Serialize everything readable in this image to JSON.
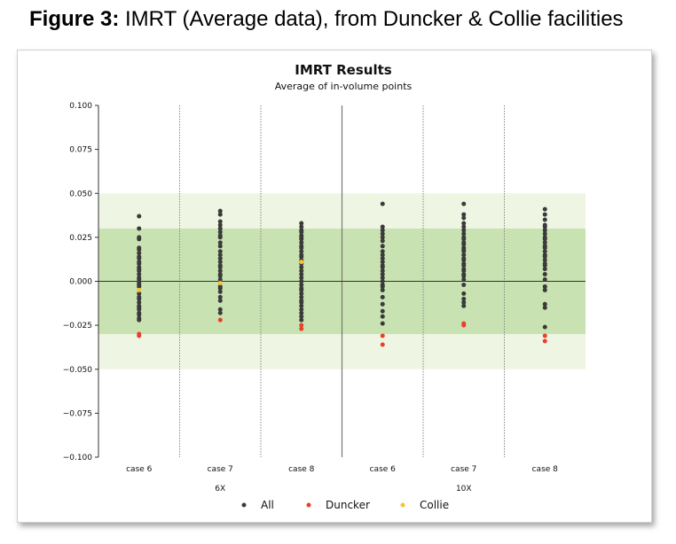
{
  "caption": {
    "label": "Figure 3:",
    "text": " IMRT (Average data), from Duncker & Collie facilities"
  },
  "chart_data": {
    "type": "scatter",
    "title": "IMRT Results",
    "subtitle": "Average of in-volume points",
    "ylim": [
      -0.1,
      0.1
    ],
    "yticks": [
      "0.100",
      "0.075",
      "0.050",
      "0.025",
      "0.000",
      "−0.025",
      "−0.050",
      "−0.075",
      "−0.100"
    ],
    "ytick_values": [
      0.1,
      0.075,
      0.05,
      0.025,
      0,
      -0.025,
      -0.05,
      -0.075,
      -0.1
    ],
    "bands": [
      {
        "from": -0.05,
        "to": 0.05,
        "color": "#eef6e3"
      },
      {
        "from": -0.03,
        "to": 0.03,
        "color": "#c9e2b2"
      }
    ],
    "categories": [
      "case 6",
      "case 7",
      "case 8",
      "case 6",
      "case 7",
      "case 8"
    ],
    "groups": [
      {
        "label": "6X",
        "categories": [
          0,
          1,
          2
        ]
      },
      {
        "label": "10X",
        "categories": [
          3,
          4,
          5
        ]
      }
    ],
    "series": [
      {
        "name": "All",
        "color": "#3a3a3a",
        "points": [
          [
            0,
            0.037
          ],
          [
            0,
            0.03
          ],
          [
            0,
            0.025
          ],
          [
            0,
            0.024
          ],
          [
            0,
            0.019
          ],
          [
            0,
            0.018
          ],
          [
            0,
            0.016
          ],
          [
            0,
            0.014
          ],
          [
            0,
            0.013
          ],
          [
            0,
            0.011
          ],
          [
            0,
            0.01
          ],
          [
            0,
            0.008
          ],
          [
            0,
            0.007
          ],
          [
            0,
            0.006
          ],
          [
            0,
            0.004
          ],
          [
            0,
            0.002
          ],
          [
            0,
            0.001
          ],
          [
            0,
            -0.001
          ],
          [
            0,
            -0.002
          ],
          [
            0,
            -0.003
          ],
          [
            0,
            -0.007
          ],
          [
            0,
            -0.009
          ],
          [
            0,
            -0.01
          ],
          [
            0,
            -0.012
          ],
          [
            0,
            -0.014
          ],
          [
            0,
            -0.015
          ],
          [
            0,
            -0.016
          ],
          [
            0,
            -0.018
          ],
          [
            0,
            -0.019
          ],
          [
            0,
            -0.021
          ],
          [
            0,
            -0.022
          ],
          [
            1,
            0.04
          ],
          [
            1,
            0.038
          ],
          [
            1,
            0.034
          ],
          [
            1,
            0.032
          ],
          [
            1,
            0.03
          ],
          [
            1,
            0.028
          ],
          [
            1,
            0.026
          ],
          [
            1,
            0.025
          ],
          [
            1,
            0.022
          ],
          [
            1,
            0.02
          ],
          [
            1,
            0.017
          ],
          [
            1,
            0.015
          ],
          [
            1,
            0.013
          ],
          [
            1,
            0.011
          ],
          [
            1,
            0.009
          ],
          [
            1,
            0.008
          ],
          [
            1,
            0.006
          ],
          [
            1,
            0.004
          ],
          [
            1,
            0.003
          ],
          [
            1,
            0.001
          ],
          [
            1,
            -0.003
          ],
          [
            1,
            -0.004
          ],
          [
            1,
            -0.006
          ],
          [
            1,
            -0.009
          ],
          [
            1,
            -0.011
          ],
          [
            1,
            -0.016
          ],
          [
            1,
            -0.018
          ],
          [
            2,
            0.033
          ],
          [
            2,
            0.031
          ],
          [
            2,
            0.029
          ],
          [
            2,
            0.028
          ],
          [
            2,
            0.026
          ],
          [
            2,
            0.025
          ],
          [
            2,
            0.024
          ],
          [
            2,
            0.022
          ],
          [
            2,
            0.02
          ],
          [
            2,
            0.019
          ],
          [
            2,
            0.017
          ],
          [
            2,
            0.015
          ],
          [
            2,
            0.014
          ],
          [
            2,
            0.012
          ],
          [
            2,
            0.011
          ],
          [
            2,
            0.01
          ],
          [
            2,
            0.008
          ],
          [
            2,
            0.006
          ],
          [
            2,
            0.004
          ],
          [
            2,
            0.002
          ],
          [
            2,
            0.0
          ],
          [
            2,
            -0.002
          ],
          [
            2,
            -0.004
          ],
          [
            2,
            -0.005
          ],
          [
            2,
            -0.007
          ],
          [
            2,
            -0.009
          ],
          [
            2,
            -0.011
          ],
          [
            2,
            -0.012
          ],
          [
            2,
            -0.014
          ],
          [
            2,
            -0.016
          ],
          [
            2,
            -0.018
          ],
          [
            2,
            -0.02
          ],
          [
            2,
            -0.022
          ],
          [
            3,
            0.044
          ],
          [
            3,
            0.031
          ],
          [
            3,
            0.029
          ],
          [
            3,
            0.027
          ],
          [
            3,
            0.025
          ],
          [
            3,
            0.023
          ],
          [
            3,
            0.02
          ],
          [
            3,
            0.017
          ],
          [
            3,
            0.015
          ],
          [
            3,
            0.013
          ],
          [
            3,
            0.011
          ],
          [
            3,
            0.009
          ],
          [
            3,
            0.008
          ],
          [
            3,
            0.006
          ],
          [
            3,
            0.004
          ],
          [
            3,
            0.002
          ],
          [
            3,
            0.0
          ],
          [
            3,
            -0.002
          ],
          [
            3,
            -0.003
          ],
          [
            3,
            -0.005
          ],
          [
            3,
            -0.009
          ],
          [
            3,
            -0.013
          ],
          [
            3,
            -0.017
          ],
          [
            3,
            -0.02
          ],
          [
            3,
            -0.024
          ],
          [
            4,
            0.044
          ],
          [
            4,
            0.038
          ],
          [
            4,
            0.036
          ],
          [
            4,
            0.033
          ],
          [
            4,
            0.031
          ],
          [
            4,
            0.029
          ],
          [
            4,
            0.027
          ],
          [
            4,
            0.025
          ],
          [
            4,
            0.024
          ],
          [
            4,
            0.022
          ],
          [
            4,
            0.021
          ],
          [
            4,
            0.019
          ],
          [
            4,
            0.018
          ],
          [
            4,
            0.017
          ],
          [
            4,
            0.015
          ],
          [
            4,
            0.013
          ],
          [
            4,
            0.012
          ],
          [
            4,
            0.01
          ],
          [
            4,
            0.009
          ],
          [
            4,
            0.007
          ],
          [
            4,
            0.006
          ],
          [
            4,
            0.004
          ],
          [
            4,
            0.003
          ],
          [
            4,
            0.001
          ],
          [
            4,
            -0.002
          ],
          [
            4,
            -0.007
          ],
          [
            4,
            -0.01
          ],
          [
            4,
            -0.012
          ],
          [
            4,
            -0.014
          ],
          [
            5,
            0.041
          ],
          [
            5,
            0.038
          ],
          [
            5,
            0.035
          ],
          [
            5,
            0.032
          ],
          [
            5,
            0.031
          ],
          [
            5,
            0.029
          ],
          [
            5,
            0.027
          ],
          [
            5,
            0.025
          ],
          [
            5,
            0.024
          ],
          [
            5,
            0.022
          ],
          [
            5,
            0.02
          ],
          [
            5,
            0.019
          ],
          [
            5,
            0.017
          ],
          [
            5,
            0.015
          ],
          [
            5,
            0.014
          ],
          [
            5,
            0.012
          ],
          [
            5,
            0.01
          ],
          [
            5,
            0.009
          ],
          [
            5,
            0.007
          ],
          [
            5,
            0.004
          ],
          [
            5,
            0.001
          ],
          [
            5,
            -0.003
          ],
          [
            5,
            -0.005
          ],
          [
            5,
            -0.013
          ],
          [
            5,
            -0.015
          ],
          [
            5,
            -0.026
          ]
        ]
      },
      {
        "name": "Duncker",
        "color": "#e8402a",
        "points": [
          [
            0,
            -0.03
          ],
          [
            0,
            -0.031
          ],
          [
            1,
            -0.022
          ],
          [
            2,
            -0.025
          ],
          [
            2,
            -0.027
          ],
          [
            3,
            -0.031
          ],
          [
            3,
            -0.036
          ],
          [
            4,
            -0.024
          ],
          [
            4,
            -0.025
          ],
          [
            5,
            -0.031
          ],
          [
            5,
            -0.034
          ]
        ]
      },
      {
        "name": "Collie",
        "color": "#f5c330",
        "points": [
          [
            0,
            -0.005
          ],
          [
            1,
            -0.001
          ],
          [
            2,
            0.011
          ]
        ]
      }
    ],
    "legend": "bottom-center",
    "grid": false
  }
}
